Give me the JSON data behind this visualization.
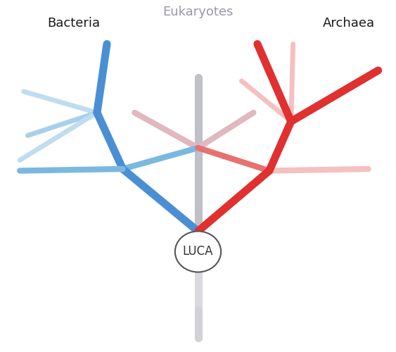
{
  "background_color": "#ffffff",
  "label_eukaryotes": "Eukaryotes",
  "label_bacteria": "Bacteria",
  "label_archaea": "Archaea",
  "label_luca": "LUCA",
  "color_bact_dark": "#4a8fd4",
  "color_bact_med": "#7ab8e0",
  "color_bact_light": "#a8d0ea",
  "color_bact_lighter": "#c0ddf0",
  "color_arch_dark": "#e03030",
  "color_arch_med": "#e87070",
  "color_arch_light": "#f0a8a8",
  "color_arch_lighter": "#f5c0c0",
  "color_euk_gray": "#c0c0c8",
  "color_euk_pink": "#e0b8c0",
  "lw_thick": 8,
  "lw_med": 6,
  "lw_thin": 5
}
